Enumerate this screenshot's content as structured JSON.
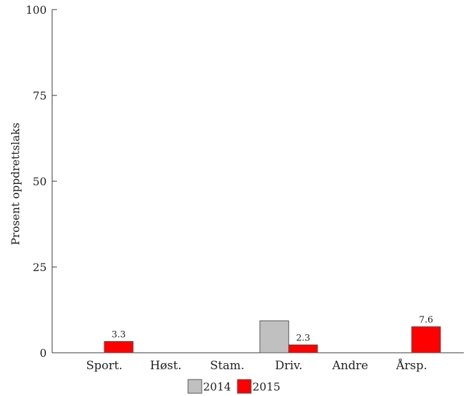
{
  "chart_data": {
    "type": "bar",
    "title": "",
    "xlabel": "",
    "ylabel": "Prosent oppdrettslaks",
    "ylim": [
      0,
      100
    ],
    "yticks": [
      0,
      25,
      50,
      75,
      100
    ],
    "categories": [
      "Sport.",
      "Høst.",
      "Stam.",
      "Driv.",
      "Andre",
      "Årsp."
    ],
    "series": [
      {
        "name": "2014",
        "color": "#c0c0c0",
        "values": [
          0,
          0,
          0,
          9.3,
          0,
          0
        ]
      },
      {
        "name": "2015",
        "color": "#ff0000",
        "values": [
          3.3,
          0,
          0,
          2.3,
          0,
          7.6
        ]
      }
    ],
    "data_labels": [
      {
        "series": 1,
        "category": 0,
        "text": "3.3"
      },
      {
        "series": 1,
        "category": 3,
        "text": "2.3"
      },
      {
        "series": 1,
        "category": 5,
        "text": "7.6"
      }
    ],
    "legend_position": "bottom",
    "grid": false
  }
}
